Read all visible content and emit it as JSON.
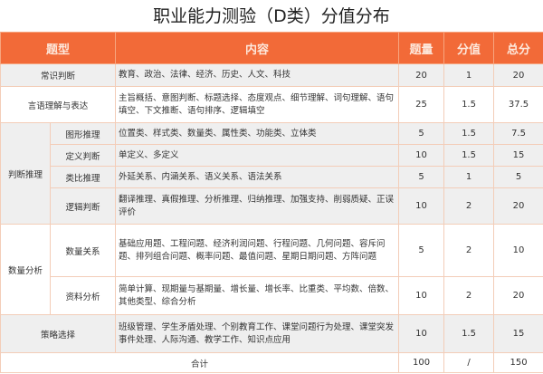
{
  "title": "职业能力测验（D类）分值分布",
  "headers": {
    "type": "题型",
    "content": "内容",
    "count": "题量",
    "score": "分值",
    "total": "总分"
  },
  "rows": [
    {
      "type": "常识判断",
      "content": "教育、政治、法律、经济、历史、人文、科技",
      "count": "20",
      "score": "1",
      "total": "20"
    },
    {
      "type": "言语理解与表达",
      "content": "主旨概括、意图判断、标题选择、态度观点、细节理解、词句理解、语句填空、下文推断、语句排序、逻辑填空",
      "count": "25",
      "score": "1.5",
      "total": "37.5"
    },
    {
      "group": "判断推理",
      "type": "图形推理",
      "content": "位置类、样式类、数量类、属性类、功能类、立体类",
      "count": "5",
      "score": "1.5",
      "total": "7.5"
    },
    {
      "type": "定义判断",
      "content": "单定义、多定义",
      "count": "10",
      "score": "1.5",
      "total": "15"
    },
    {
      "type": "类比推理",
      "content": "外延关系、内涵关系、语义关系、语法关系",
      "count": "5",
      "score": "1",
      "total": "5"
    },
    {
      "type": "逻辑判断",
      "content": "翻译推理、真假推理、分析推理、归纳推理、加强支持、削弱质疑、正误评价",
      "count": "10",
      "score": "2",
      "total": "20"
    },
    {
      "group": "数量分析",
      "type": "数量关系",
      "content": "基础应用题、工程问题、经济利润问题、行程问题、几何问题、容斥问题、排列组合问题、概率问题、最值问题、星期日期问题、方阵问题",
      "count": "5",
      "score": "2",
      "total": "10"
    },
    {
      "type": "资料分析",
      "content": "简单计算、现期量与基期量、增长量、增长率、比重类、平均数、倍数、其他类型、综合分析",
      "count": "10",
      "score": "2",
      "total": "20"
    },
    {
      "type": "策略选择",
      "content": "班级管理、学生矛盾处理、个别教育工作、课堂问题行为处理、课堂突发事件处理、人际沟通、教学工作、知识点应用",
      "count": "10",
      "score": "1.5",
      "total": "15"
    }
  ],
  "footer": {
    "label": "合计",
    "count": "100",
    "score": "/",
    "total": "150"
  },
  "colors": {
    "header": "#f26a38",
    "row_gray": "#efefef",
    "border": "#f3cdb8"
  }
}
